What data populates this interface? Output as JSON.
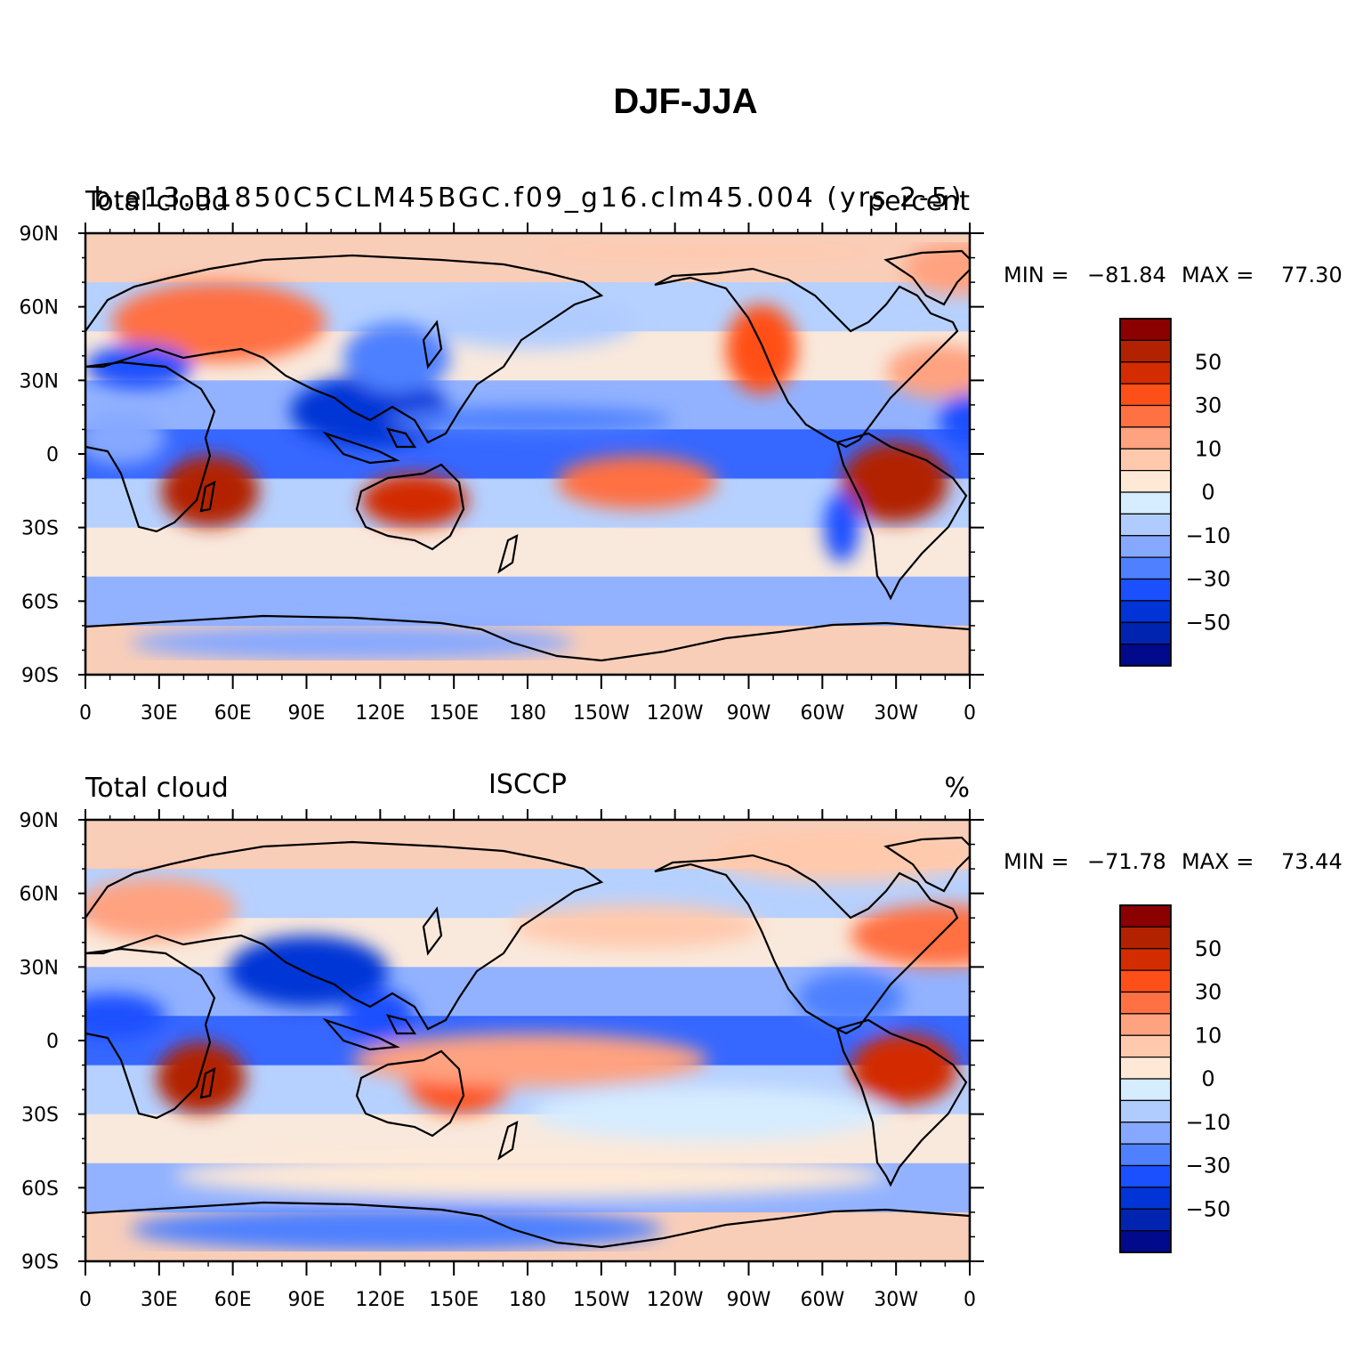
{
  "title": "DJF-JJA",
  "panels": [
    {
      "left_label": "Total cloud",
      "center_label": "b.e13.B1850C5CLM45BGC.f09_g16.clm45.004 (yrs 2-5)",
      "right_label": "percent",
      "min_label": "MIN =",
      "min_value": "−81.84",
      "max_label": "MAX =",
      "max_value": "77.30"
    },
    {
      "left_label": "Total cloud",
      "center_label": "ISCCP",
      "right_label": "%",
      "min_label": "MIN =",
      "min_value": "−71.78",
      "max_label": "MAX =",
      "max_value": "73.44"
    }
  ],
  "lat_ticks": [
    "90N",
    "60N",
    "30N",
    "0",
    "30S",
    "60S",
    "90S"
  ],
  "lon_ticks": [
    "0",
    "30E",
    "60E",
    "90E",
    "120E",
    "150E",
    "180",
    "150W",
    "120W",
    "90W",
    "60W",
    "30W",
    "0"
  ],
  "colorbar": {
    "colors": [
      "#8b0000",
      "#b22200",
      "#d32c00",
      "#ff4f19",
      "#ff7043",
      "#ffa280",
      "#ffc9ad",
      "#ffe9d6",
      "#d6ecff",
      "#b0ccff",
      "#86a8ff",
      "#4e80ff",
      "#1a50ff",
      "#0034d6",
      "#0024b0",
      "#000a8b"
    ],
    "labels": [
      "50",
      "30",
      "10",
      "0",
      "−10",
      "−30",
      "−50"
    ]
  }
}
